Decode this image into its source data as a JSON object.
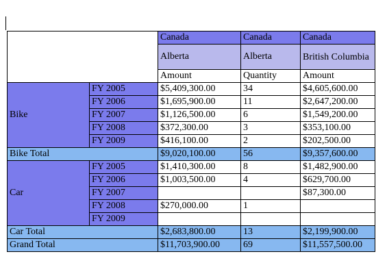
{
  "header": {
    "countries": [
      "Canada",
      "Canada",
      "Canada"
    ],
    "regions": [
      "Alberta",
      "Alberta",
      "British Columbia"
    ],
    "measures": [
      "Amount",
      "Quantity",
      "Amount"
    ]
  },
  "groups": [
    {
      "name": "Bike",
      "rows": [
        {
          "year": "FY 2005",
          "c1": "$5,409,300.00",
          "c2": "34",
          "c3": "$4,605,600.00"
        },
        {
          "year": "FY 2006",
          "c1": "$1,695,900.00",
          "c2": "11",
          "c3": "$2,647,200.00"
        },
        {
          "year": "FY 2007",
          "c1": "$1,126,500.00",
          "c2": "6",
          "c3": "$1,549,200.00"
        },
        {
          "year": "FY 2008",
          "c1": "$372,300.00",
          "c2": "3",
          "c3": "$353,100.00"
        },
        {
          "year": "FY 2009",
          "c1": "$416,100.00",
          "c2": "2",
          "c3": "$202,500.00"
        }
      ],
      "total": {
        "label": "Bike Total",
        "c1": "$9,020,100.00",
        "c2": "56",
        "c3": "$9,357,600.00"
      }
    },
    {
      "name": "Car",
      "rows": [
        {
          "year": "FY 2005",
          "c1": "$1,410,300.00",
          "c2": "8",
          "c3": "$1,482,900.00"
        },
        {
          "year": "FY 2006",
          "c1": "$1,003,500.00",
          "c2": "4",
          "c3": "$629,700.00"
        },
        {
          "year": "FY 2007",
          "c1": "",
          "c2": "",
          "c3": "$87,300.00"
        },
        {
          "year": "FY 2008",
          "c1": "$270,000.00",
          "c2": "1",
          "c3": ""
        },
        {
          "year": "FY 2009",
          "c1": "",
          "c2": "",
          "c3": ""
        }
      ],
      "total": {
        "label": "Car Total",
        "c1": "$2,683,800.00",
        "c2": "13",
        "c3": "$2,199,900.00"
      }
    }
  ],
  "grand_total": {
    "label": "Grand Total",
    "c1": "$11,703,900.00",
    "c2": "69",
    "c3": "$11,557,500.00"
  }
}
